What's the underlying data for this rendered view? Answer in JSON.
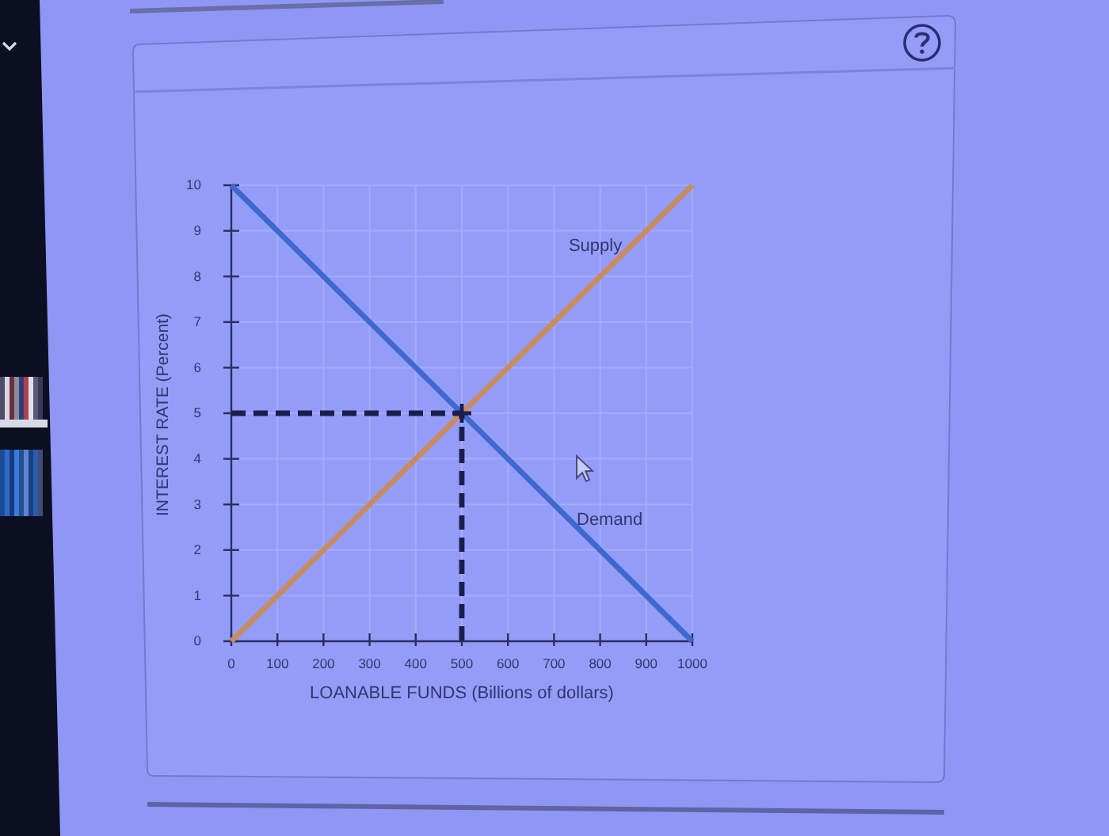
{
  "chart_data": {
    "type": "line",
    "xlabel": "LOANABLE FUNDS (Billions of dollars)",
    "ylabel": "INTEREST RATE (Percent)",
    "xlim": [
      0,
      1000
    ],
    "ylim": [
      0,
      10
    ],
    "xticks": [
      0,
      100,
      200,
      300,
      400,
      500,
      600,
      700,
      800,
      900,
      1000
    ],
    "yticks": [
      0,
      1,
      2,
      3,
      4,
      5,
      6,
      7,
      8,
      9,
      10
    ],
    "grid": true,
    "series": [
      {
        "name": "Supply",
        "color": "#c98b60",
        "x": [
          0,
          1000
        ],
        "values": [
          0,
          10
        ]
      },
      {
        "name": "Demand",
        "color": "#3f68cf",
        "x": [
          0,
          1000
        ],
        "values": [
          10,
          0
        ]
      },
      {
        "type": "line",
        "color": "#1b1e4d",
        "line_style": "dashed",
        "x": [
          0,
          500,
          500
        ],
        "values": [
          5,
          5,
          0
        ]
      },
      {
        "type": "scatter",
        "color": "#1b1e4d",
        "marker": "cross",
        "x": [
          500
        ],
        "values": [
          5
        ]
      }
    ]
  }
}
